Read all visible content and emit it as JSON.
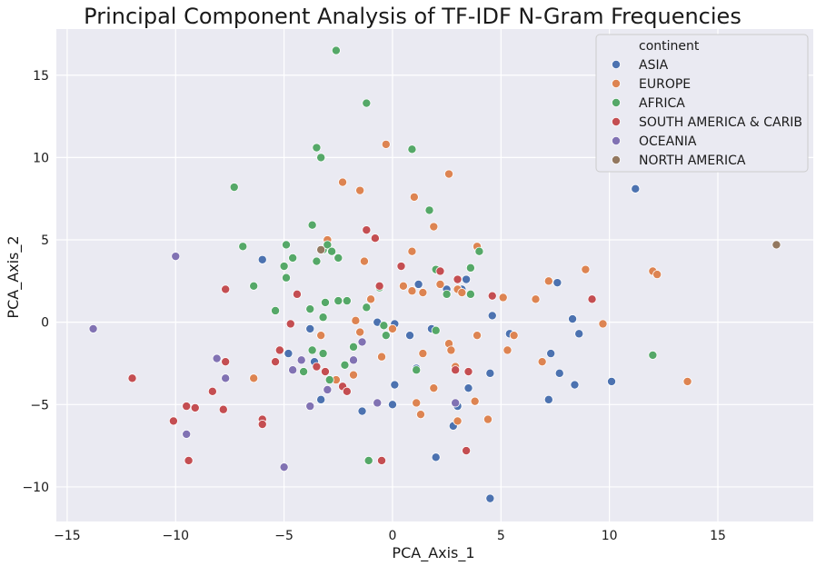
{
  "chart_data": {
    "type": "scatter",
    "title": "Principal Component Analysis of TF-IDF N-Gram Frequencies",
    "xlabel": "PCA_Axis_1",
    "ylabel": "PCA_Axis_2",
    "xlim": [
      -15.5,
      19.4
    ],
    "ylim": [
      -12.1,
      17.8
    ],
    "xticks": [
      -15,
      -10,
      -5,
      0,
      5,
      10,
      15
    ],
    "yticks": [
      -10,
      -5,
      0,
      5,
      10,
      15
    ],
    "grid": true,
    "background": "#eaeaf2",
    "legend": {
      "title": "continent",
      "position": "top-right"
    },
    "series": [
      {
        "name": "ASIA",
        "color": "#4c72b0",
        "points": [
          [
            11.2,
            8.1
          ],
          [
            -6.0,
            3.8
          ],
          [
            -3.8,
            -0.4
          ],
          [
            -3.6,
            -2.4
          ],
          [
            -3.3,
            -4.7
          ],
          [
            -4.8,
            -1.9
          ],
          [
            -1.4,
            -5.4
          ],
          [
            -0.7,
            0.0
          ],
          [
            0.1,
            -0.1
          ],
          [
            0.1,
            -3.8
          ],
          [
            0.0,
            -5.0
          ],
          [
            0.8,
            -0.8
          ],
          [
            1.1,
            -2.8
          ],
          [
            1.2,
            2.3
          ],
          [
            1.8,
            -0.4
          ],
          [
            2.0,
            -8.2
          ],
          [
            2.5,
            2.0
          ],
          [
            3.0,
            -5.1
          ],
          [
            2.8,
            -6.3
          ],
          [
            3.2,
            2.0
          ],
          [
            3.4,
            2.6
          ],
          [
            3.5,
            -4.0
          ],
          [
            4.6,
            0.4
          ],
          [
            4.5,
            -3.1
          ],
          [
            4.5,
            -10.7
          ],
          [
            5.4,
            -0.7
          ],
          [
            7.2,
            -4.7
          ],
          [
            7.3,
            -1.9
          ],
          [
            7.6,
            2.4
          ],
          [
            7.7,
            -3.1
          ],
          [
            8.3,
            0.2
          ],
          [
            8.4,
            -3.8
          ],
          [
            8.6,
            -0.7
          ],
          [
            10.1,
            -3.6
          ]
        ]
      },
      {
        "name": "EUROPE",
        "color": "#dd8452",
        "points": [
          [
            -0.3,
            10.8
          ],
          [
            2.6,
            9.0
          ],
          [
            1.0,
            7.6
          ],
          [
            -2.3,
            8.5
          ],
          [
            -1.5,
            8.0
          ],
          [
            1.9,
            5.8
          ],
          [
            0.9,
            4.3
          ],
          [
            -3.0,
            5.0
          ],
          [
            -1.3,
            3.7
          ],
          [
            -1.7,
            0.1
          ],
          [
            -1.5,
            -0.6
          ],
          [
            -1.0,
            1.4
          ],
          [
            -0.5,
            -2.1
          ],
          [
            0.5,
            2.2
          ],
          [
            0.9,
            1.9
          ],
          [
            1.4,
            1.8
          ],
          [
            2.2,
            2.3
          ],
          [
            3.0,
            2.0
          ],
          [
            3.2,
            1.8
          ],
          [
            3.9,
            4.6
          ],
          [
            5.1,
            1.5
          ],
          [
            5.3,
            -1.7
          ],
          [
            5.6,
            -0.8
          ],
          [
            6.6,
            1.4
          ],
          [
            6.9,
            -2.4
          ],
          [
            7.2,
            2.5
          ],
          [
            8.9,
            3.2
          ],
          [
            9.7,
            -0.1
          ],
          [
            12.0,
            3.1
          ],
          [
            12.2,
            2.9
          ],
          [
            13.6,
            -3.6
          ],
          [
            -6.4,
            -3.4
          ],
          [
            -2.6,
            -3.5
          ],
          [
            -1.8,
            -3.2
          ],
          [
            -3.3,
            -0.8
          ],
          [
            0.0,
            -0.4
          ],
          [
            1.1,
            -4.9
          ],
          [
            1.4,
            -1.9
          ],
          [
            1.3,
            -5.6
          ],
          [
            1.9,
            -4.0
          ],
          [
            2.6,
            -1.3
          ],
          [
            2.7,
            -1.7
          ],
          [
            2.9,
            -2.7
          ],
          [
            3.0,
            -6.0
          ],
          [
            3.8,
            -4.8
          ],
          [
            3.9,
            -0.8
          ],
          [
            4.4,
            -5.9
          ]
        ]
      },
      {
        "name": "AFRICA",
        "color": "#55a868",
        "points": [
          [
            -2.6,
            16.5
          ],
          [
            -1.2,
            13.3
          ],
          [
            0.9,
            10.5
          ],
          [
            -3.5,
            10.6
          ],
          [
            -3.3,
            10.0
          ],
          [
            -7.3,
            8.2
          ],
          [
            1.7,
            6.8
          ],
          [
            -3.7,
            5.9
          ],
          [
            -6.9,
            4.6
          ],
          [
            -4.9,
            4.7
          ],
          [
            -3.2,
            4.4
          ],
          [
            -3.0,
            4.7
          ],
          [
            -2.8,
            4.3
          ],
          [
            -2.5,
            3.9
          ],
          [
            -3.5,
            3.7
          ],
          [
            -4.6,
            3.9
          ],
          [
            -5.0,
            3.4
          ],
          [
            -4.9,
            2.7
          ],
          [
            -6.4,
            2.2
          ],
          [
            -0.6,
            2.1
          ],
          [
            2.0,
            3.2
          ],
          [
            3.6,
            3.3
          ],
          [
            4.0,
            4.3
          ],
          [
            3.6,
            1.7
          ],
          [
            2.5,
            1.7
          ],
          [
            -2.1,
            1.3
          ],
          [
            -2.5,
            1.3
          ],
          [
            -3.1,
            1.2
          ],
          [
            -3.8,
            0.8
          ],
          [
            -5.4,
            0.7
          ],
          [
            -3.2,
            0.3
          ],
          [
            -1.2,
            0.9
          ],
          [
            -0.4,
            -0.2
          ],
          [
            -0.3,
            -0.8
          ],
          [
            2.0,
            -0.5
          ],
          [
            -1.8,
            -1.5
          ],
          [
            -3.2,
            -1.9
          ],
          [
            -3.7,
            -1.7
          ],
          [
            -2.2,
            -2.6
          ],
          [
            -2.9,
            -3.5
          ],
          [
            -4.1,
            -3.0
          ],
          [
            1.1,
            -2.9
          ],
          [
            -1.1,
            -8.4
          ],
          [
            12.0,
            -2.0
          ]
        ]
      },
      {
        "name": "SOUTH AMERICA & CARIB",
        "color": "#c44e52",
        "points": [
          [
            -1.2,
            5.6
          ],
          [
            -0.8,
            5.1
          ],
          [
            0.4,
            3.4
          ],
          [
            2.2,
            3.1
          ],
          [
            3.0,
            2.6
          ],
          [
            -0.6,
            2.2
          ],
          [
            -7.7,
            2.0
          ],
          [
            -4.4,
            1.7
          ],
          [
            4.6,
            1.6
          ],
          [
            9.2,
            1.4
          ],
          [
            -4.7,
            -0.1
          ],
          [
            -7.7,
            -2.4
          ],
          [
            -5.2,
            -1.7
          ],
          [
            -5.4,
            -2.4
          ],
          [
            -3.5,
            -2.7
          ],
          [
            -3.1,
            -3.0
          ],
          [
            -2.3,
            -3.9
          ],
          [
            -2.1,
            -4.2
          ],
          [
            2.9,
            -2.9
          ],
          [
            3.5,
            -3.0
          ],
          [
            -8.3,
            -4.2
          ],
          [
            -7.8,
            -5.3
          ],
          [
            -9.5,
            -5.1
          ],
          [
            -9.1,
            -5.2
          ],
          [
            -10.1,
            -6.0
          ],
          [
            -6.0,
            -5.9
          ],
          [
            -6.0,
            -6.2
          ],
          [
            -12.0,
            -3.4
          ],
          [
            -9.4,
            -8.4
          ],
          [
            -0.5,
            -8.4
          ],
          [
            3.4,
            -7.8
          ]
        ]
      },
      {
        "name": "OCEANIA",
        "color": "#8172b3",
        "points": [
          [
            -10.0,
            4.0
          ],
          [
            -13.8,
            -0.4
          ],
          [
            -8.1,
            -2.2
          ],
          [
            -7.7,
            -3.4
          ],
          [
            -4.6,
            -2.9
          ],
          [
            -4.2,
            -2.3
          ],
          [
            -3.0,
            -4.1
          ],
          [
            -3.8,
            -5.1
          ],
          [
            -1.4,
            -1.2
          ],
          [
            -1.8,
            -2.3
          ],
          [
            -0.7,
            -4.9
          ],
          [
            2.9,
            -4.9
          ],
          [
            -9.5,
            -6.8
          ],
          [
            -5.0,
            -8.8
          ]
        ]
      },
      {
        "name": "NORTH AMERICA",
        "color": "#937860",
        "points": [
          [
            17.7,
            4.7
          ],
          [
            -3.3,
            4.4
          ]
        ]
      }
    ]
  }
}
